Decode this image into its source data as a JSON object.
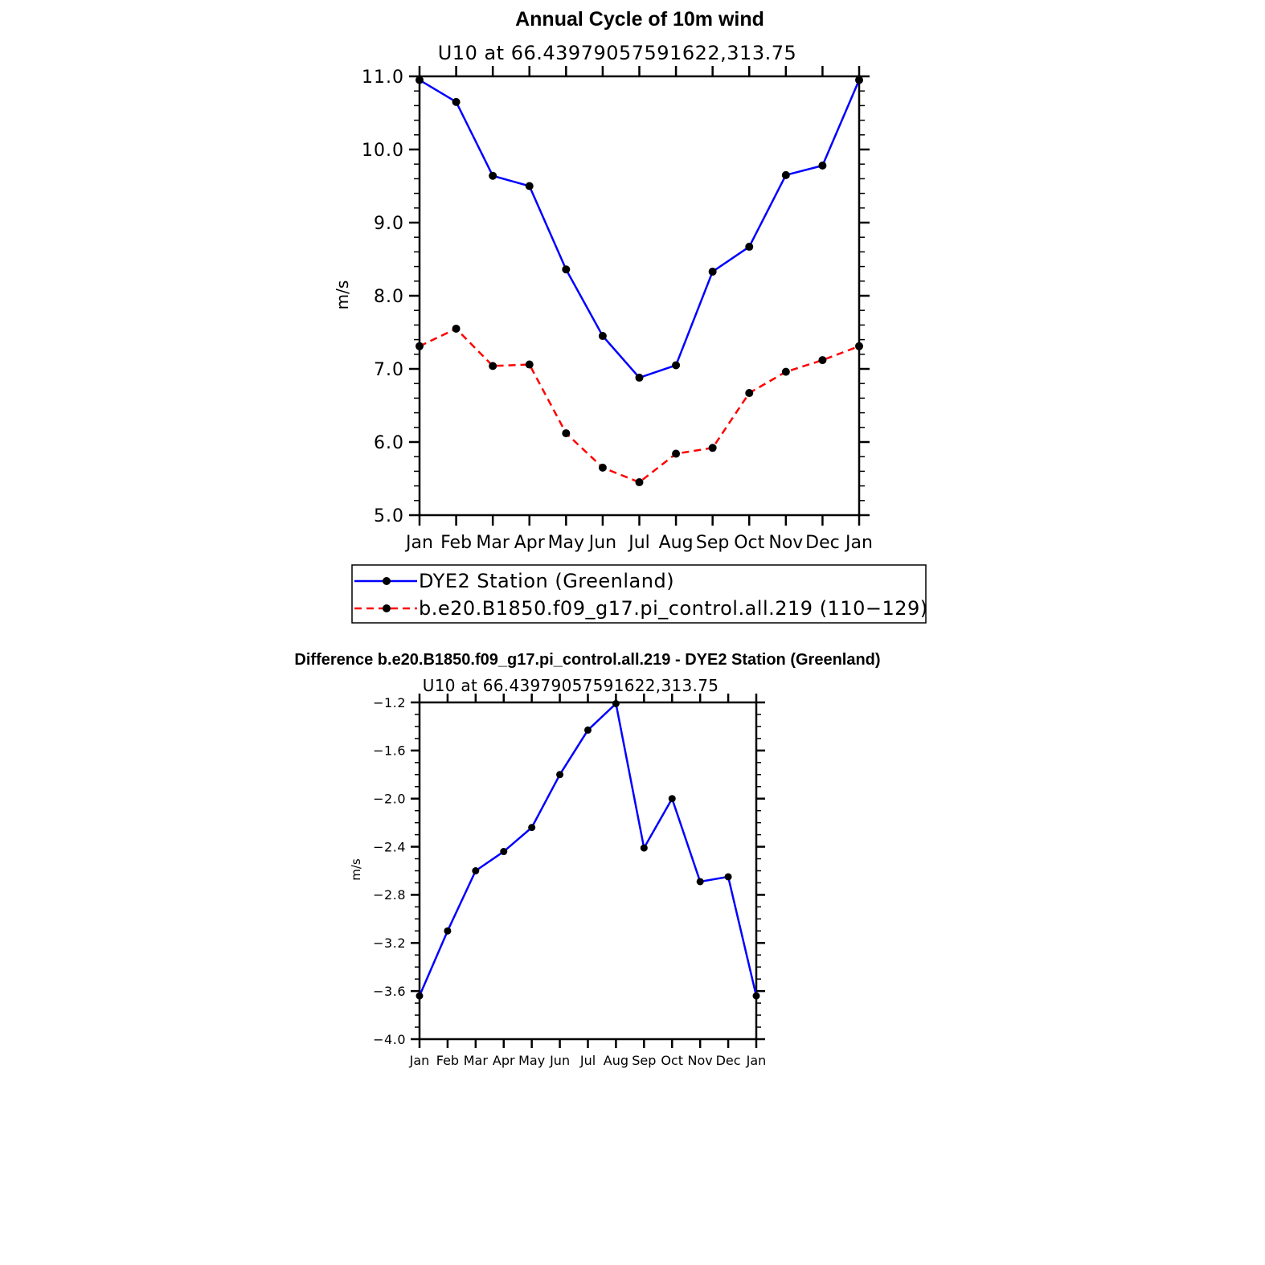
{
  "chart_data": [
    {
      "type": "line",
      "title": "Annual Cycle of 10m wind",
      "subtitle": "U10 at 66.43979057591622,313.75",
      "ylabel": "m/s",
      "xlabel": "",
      "categories": [
        "Jan",
        "Feb",
        "Mar",
        "Apr",
        "May",
        "Jun",
        "Jul",
        "Aug",
        "Sep",
        "Oct",
        "Nov",
        "Dec",
        "Jan"
      ],
      "ylim": [
        5.0,
        11.0
      ],
      "yticks": [
        "5.0",
        "6.0",
        "7.0",
        "8.0",
        "9.0",
        "10.0",
        "11.0"
      ],
      "grid": false,
      "legend_placement": "bottom",
      "series": [
        {
          "name": "DYE2 Station (Greenland)",
          "color": "#0000ff",
          "dash": "solid",
          "values": [
            10.95,
            10.65,
            9.64,
            9.5,
            8.36,
            7.45,
            6.88,
            7.05,
            8.33,
            8.67,
            9.65,
            9.78,
            10.95
          ]
        },
        {
          "name": "b.e20.B1850.f09_g17.pi_control.all.219 (110−129)",
          "color": "#ff0000",
          "dash": "dashed",
          "values": [
            7.31,
            7.55,
            7.04,
            7.06,
            6.12,
            5.65,
            5.45,
            5.84,
            5.92,
            6.67,
            6.96,
            7.12,
            7.31
          ]
        }
      ]
    },
    {
      "type": "line",
      "title": "Difference b.e20.B1850.f09_g17.pi_control.all.219 - DYE2 Station (Greenland)",
      "subtitle": "U10 at 66.43979057591622,313.75",
      "ylabel": "m/s",
      "xlabel": "",
      "categories": [
        "Jan",
        "Feb",
        "Mar",
        "Apr",
        "May",
        "Jun",
        "Jul",
        "Aug",
        "Sep",
        "Oct",
        "Nov",
        "Dec",
        "Jan"
      ],
      "ylim": [
        -4.0,
        -1.2
      ],
      "yticks": [
        "−4.0",
        "−3.6",
        "−3.2",
        "−2.8",
        "−2.4",
        "−2.0",
        "−1.6",
        "−1.2"
      ],
      "grid": false,
      "series": [
        {
          "color": "#0000ff",
          "dash": "solid",
          "values": [
            -3.64,
            -3.1,
            -2.6,
            -2.44,
            -2.24,
            -1.8,
            -1.43,
            -1.21,
            -2.41,
            -2.0,
            -2.69,
            -2.65,
            -3.64
          ]
        }
      ]
    }
  ]
}
